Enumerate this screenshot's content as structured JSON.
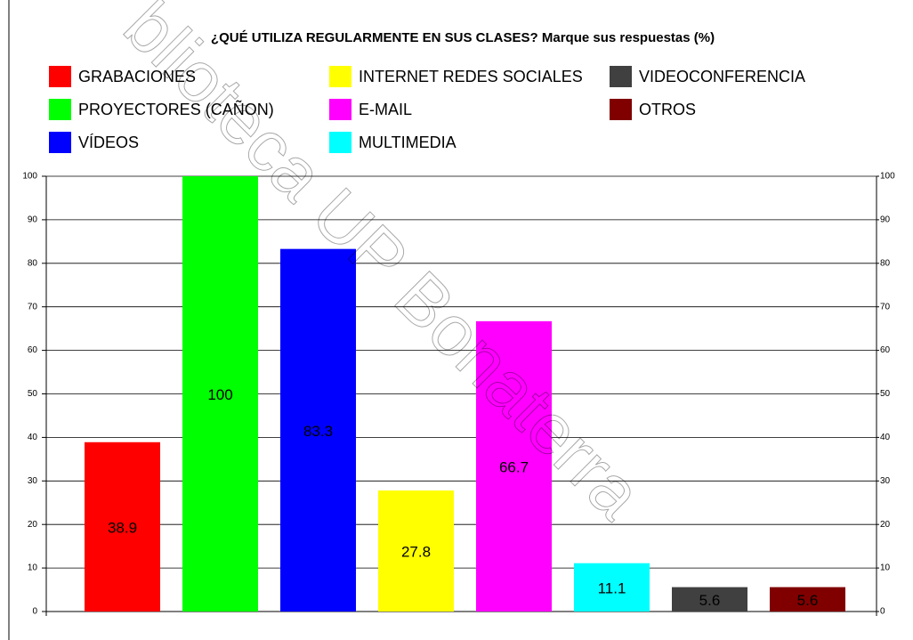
{
  "chart_data": {
    "type": "bar",
    "title": "¿QUÉ UTILIZA REGULARMENTE EN SUS CLASES? Marque sus respuestas (%)",
    "categories": [
      "GRABACIONES",
      "PROYECTORES (CAÑON)",
      "VÍDEOS",
      "INTERNET REDES SOCIALES",
      "E-MAIL",
      "MULTIMEDIA",
      "VIDEOCONFERENCIA",
      "OTROS"
    ],
    "values": [
      38.9,
      100,
      83.3,
      27.8,
      66.7,
      11.1,
      5.6,
      5.6
    ],
    "colors": [
      "#ff0000",
      "#00ff00",
      "#0000ff",
      "#ffff00",
      "#ff00ff",
      "#00ffff",
      "#404040",
      "#800000"
    ],
    "ylim": [
      0,
      100
    ],
    "yticks": [
      0,
      10,
      20,
      30,
      40,
      50,
      60,
      70,
      80,
      90,
      100
    ],
    "y2lim": [
      0,
      100
    ],
    "y2ticks": [
      0,
      10,
      20,
      30,
      40,
      50,
      60,
      70,
      80,
      90,
      100
    ],
    "grid": true,
    "watermark": "blioteca UP Bonaterra"
  }
}
